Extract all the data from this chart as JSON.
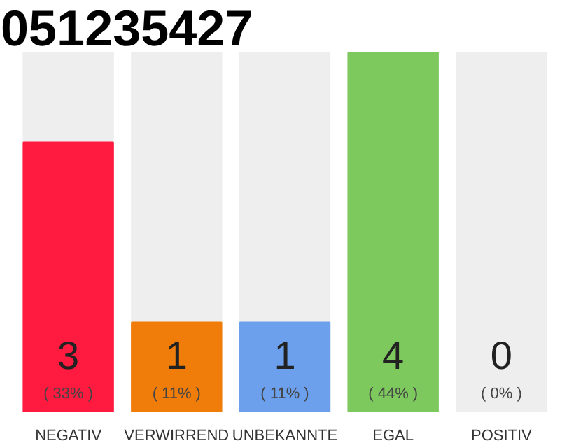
{
  "chart_data": {
    "type": "bar",
    "title": "051235427",
    "categories": [
      "NEGATIV",
      "VERWIRREND",
      "UNBEKANNTE",
      "EGAL",
      "POSITIV"
    ],
    "values": [
      3,
      1,
      1,
      4,
      0
    ],
    "colors": [
      "#ff1a40",
      "#f07d0a",
      "#6ca0ec",
      "#7dc95e",
      "#cccccc"
    ],
    "data_labels": true,
    "annotations": [
      "( 33% )",
      "( 11% )",
      "( 11% )",
      "( 44% )",
      "( 0% )"
    ],
    "grid": false
  }
}
